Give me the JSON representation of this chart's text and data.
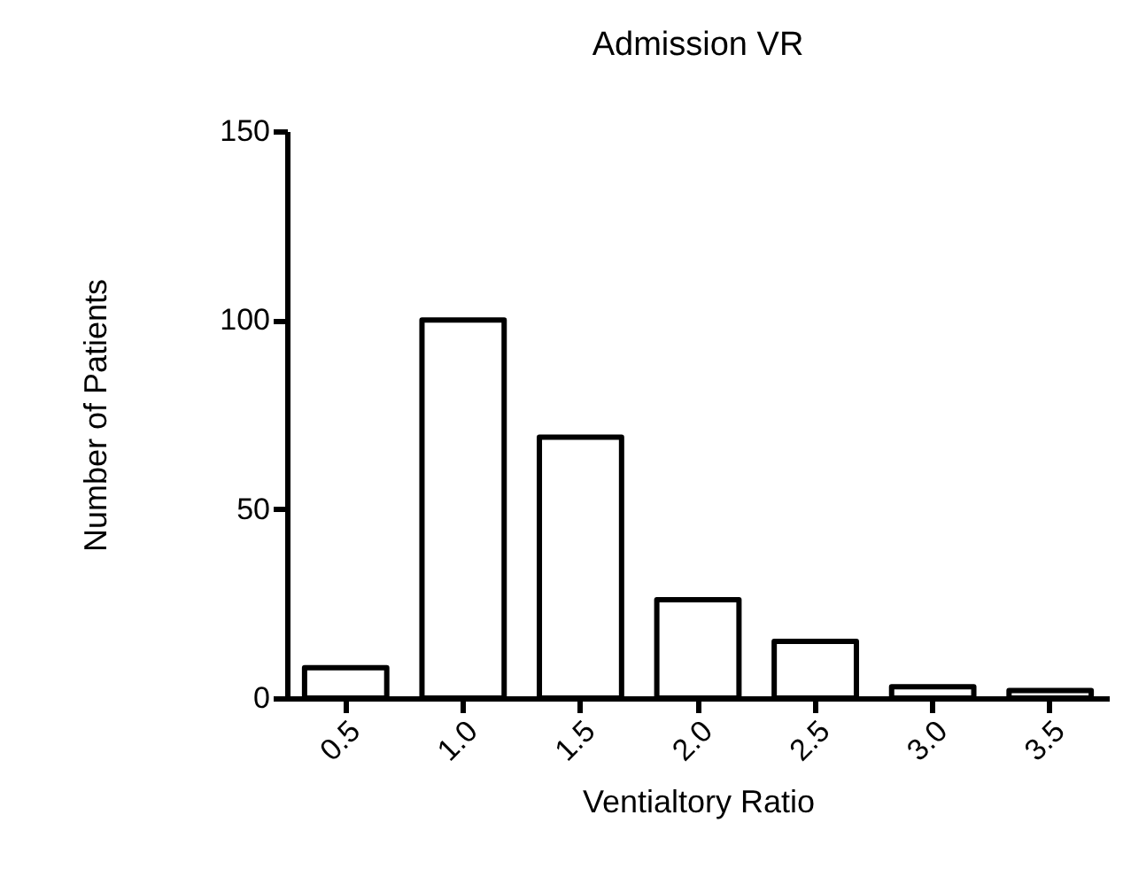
{
  "chart_data": {
    "type": "bar",
    "title": "Admission VR",
    "xlabel": "Ventialtory Ratio",
    "ylabel": "Number of Patients",
    "categories": [
      "0.5",
      "1.0",
      "1.5",
      "2.0",
      "2.5",
      "3.0",
      "3.5"
    ],
    "values": [
      8,
      100,
      69,
      26,
      15,
      3,
      2
    ],
    "color": "#ffffff",
    "ylim": [
      0,
      150
    ],
    "yticks": [
      0,
      50,
      100,
      150
    ],
    "grid": false
  }
}
